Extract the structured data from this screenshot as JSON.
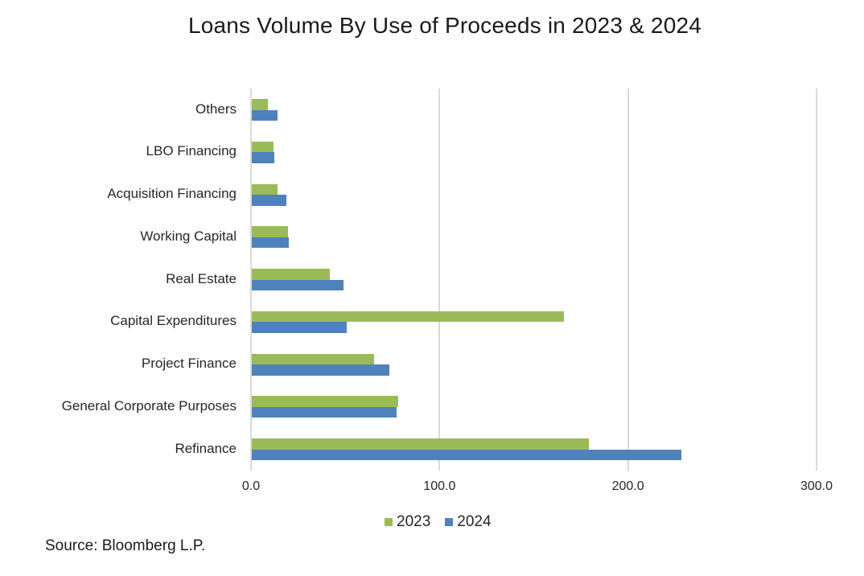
{
  "title": "Loans Volume By Use of Proceeds in 2023 & 2024",
  "source": "Source: Bloomberg L.P.",
  "colors": {
    "series_2023": "#9BBB59",
    "series_2024": "#4F81BD",
    "grid": "#D9D9D9"
  },
  "legend": [
    {
      "label": "2023",
      "color": "#9BBB59"
    },
    {
      "label": "2024",
      "color": "#4F81BD"
    }
  ],
  "x_ticks": [
    "0.0",
    "100.0",
    "200.0",
    "300.0"
  ],
  "chart_data": {
    "type": "bar",
    "orientation": "horizontal",
    "title": "Loans Volume By Use of Proceeds in 2023 & 2024",
    "xlabel": "",
    "ylabel": "",
    "xlim": [
      0,
      300
    ],
    "x_ticks": [
      0,
      100,
      200,
      300
    ],
    "grid": true,
    "legend_position": "bottom",
    "categories": [
      "Others",
      "LBO Financing",
      "Acquisition Financing",
      "Working Capital",
      "Real Estate",
      "Capital Expenditures",
      "Project Finance",
      "General Corporate Purposes",
      "Refinance"
    ],
    "series": [
      {
        "name": "2023",
        "color": "#9BBB59",
        "values": [
          8.5,
          11.5,
          13.7,
          19.2,
          41.4,
          165.5,
          64.8,
          77.6,
          178.8
        ]
      },
      {
        "name": "2024",
        "color": "#4F81BD",
        "values": [
          13.7,
          12.0,
          18.4,
          19.6,
          48.6,
          50.3,
          73.0,
          76.8,
          227.8
        ]
      }
    ],
    "annotations": [
      "Source: Bloomberg L.P."
    ]
  }
}
